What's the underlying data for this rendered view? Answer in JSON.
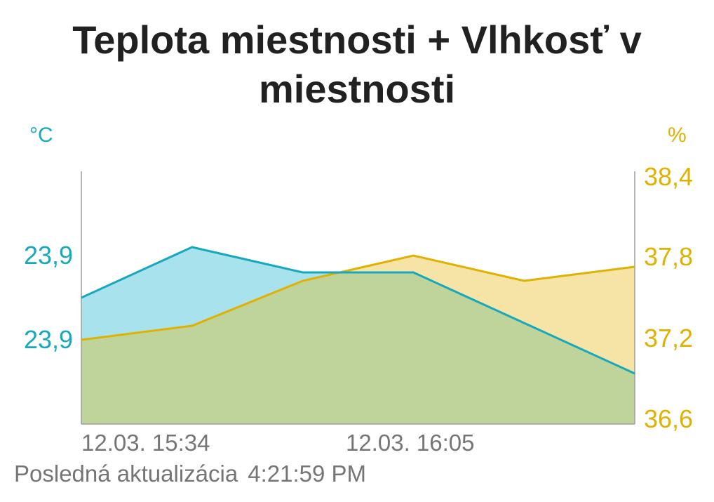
{
  "chart_data": {
    "type": "area",
    "title": "Teplota miestnosti + Vlhkosť v miestnosti",
    "x": [
      "12.03. 15:34",
      "",
      "",
      "12.03. 16:05",
      "",
      ""
    ],
    "x_tick_labels": [
      "12.03. 15:34",
      "12.03. 16:05"
    ],
    "series": [
      {
        "name": "Teplota miestnosti",
        "axis": "left",
        "unit": "°C",
        "color": "#17a8bd",
        "fill": "#a8e2ec",
        "values": [
          23.88,
          23.92,
          23.9,
          23.9,
          23.86,
          23.82
        ]
      },
      {
        "name": "Vlhkosť v miestnosti",
        "axis": "right",
        "unit": "%",
        "color": "#e0b100",
        "fill": "#f5e4a6",
        "values": [
          37.2,
          37.3,
          37.62,
          37.8,
          37.62,
          37.72
        ]
      }
    ],
    "left_axis": {
      "label": "°C",
      "ylim": [
        23.78,
        23.98
      ],
      "ticks": [
        23.86,
        23.96
      ],
      "tick_labels": [
        "23,9",
        "23,9"
      ]
    },
    "right_axis": {
      "label": "%",
      "ylim": [
        36.6,
        38.4
      ],
      "ticks": [
        36.6,
        37.2,
        37.8,
        38.4
      ],
      "tick_labels": [
        "36,6",
        "37,2",
        "37,8",
        "38,4"
      ]
    },
    "overlap_fill": "#bed49b"
  },
  "footer": {
    "label": "Posledná aktualizácia",
    "time": "4:21:59 PM"
  }
}
